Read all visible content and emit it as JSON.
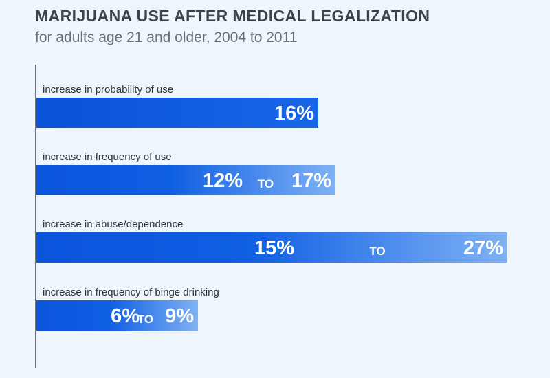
{
  "title": "MARIJUANA USE AFTER MEDICAL LEGALIZATION",
  "subtitle": "for adults age 21 and older, 2004 to 2011",
  "colors": {
    "background": "#eef5fb",
    "bar_dark": "#0b55dd",
    "bar_light": "#7fb2f5",
    "axis": "#3f4a55",
    "title": "#3d4346"
  },
  "chart_data": {
    "type": "bar",
    "orientation": "horizontal",
    "title": "MARIJUANA USE AFTER MEDICAL LEGALIZATION",
    "subtitle": "for adults age 21 and older, 2004 to 2011",
    "categories": [
      "increase in probability of use",
      "increase in frequency of use",
      "increase in abuse/dependence",
      "increase in frequency of binge drinking"
    ],
    "series": [
      {
        "low": 16,
        "high": 16
      },
      {
        "low": 12,
        "high": 17
      },
      {
        "low": 15,
        "high": 27
      },
      {
        "low": 6,
        "high": 9
      }
    ],
    "value_labels": [
      "16%",
      "12%",
      "17%",
      "15%",
      "27%",
      "6%",
      "9%"
    ],
    "range_word": "TO",
    "xlim": [
      0,
      28
    ],
    "grid": false,
    "legend": "none"
  }
}
